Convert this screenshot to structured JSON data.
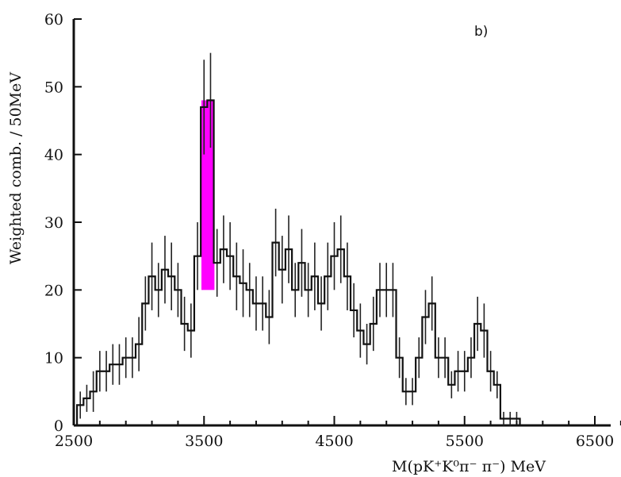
{
  "chart_data": {
    "type": "bar",
    "panel_label": "b)",
    "xlabel": "M(pK⁺K⁰π⁻ π⁻) MeV",
    "ylabel": "Weighted  comb. / 50MeV",
    "xlim": [
      2500,
      6700
    ],
    "ylim": [
      0,
      60
    ],
    "x_ticks": [
      2500,
      3500,
      4500,
      5500,
      6500
    ],
    "x_tick_labels": [
      "2500",
      "3500",
      "4500",
      "5500",
      "6500"
    ],
    "y_ticks": [
      0,
      10,
      20,
      30,
      40,
      50,
      60
    ],
    "y_tick_labels": [
      "0",
      "10",
      "20",
      "30",
      "40",
      "50",
      "60"
    ],
    "bin_width_mev": 50,
    "series": [
      {
        "style": "histogram-with-error-bars",
        "x": [
          2550,
          2600,
          2650,
          2700,
          2750,
          2800,
          2850,
          2900,
          2950,
          3000,
          3050,
          3100,
          3150,
          3200,
          3250,
          3300,
          3350,
          3400,
          3450,
          3500,
          3550,
          3600,
          3650,
          3700,
          3750,
          3800,
          3850,
          3900,
          3950,
          4000,
          4050,
          4100,
          4150,
          4200,
          4250,
          4300,
          4350,
          4400,
          4450,
          4500,
          4550,
          4600,
          4650,
          4700,
          4750,
          4800,
          4850,
          4900,
          4950,
          5000,
          5050,
          5100,
          5150,
          5200,
          5250,
          5300,
          5350,
          5400,
          5450,
          5500,
          5550,
          5600,
          5650,
          5700,
          5750,
          5800,
          5850,
          5900,
          5950,
          6000
        ],
        "values": [
          3,
          4,
          5,
          8,
          8,
          9,
          9,
          10,
          10,
          12,
          18,
          22,
          20,
          23,
          22,
          20,
          15,
          14,
          25,
          47,
          48,
          24,
          26,
          25,
          22,
          21,
          20,
          18,
          18,
          16,
          27,
          23,
          26,
          20,
          24,
          20,
          22,
          18,
          22,
          25,
          26,
          22,
          17,
          14,
          12,
          15,
          20,
          20,
          20,
          10,
          5,
          5,
          10,
          16,
          18,
          10,
          10,
          6,
          8,
          8,
          10,
          15,
          14,
          8,
          6,
          1,
          1,
          1,
          0,
          0
        ],
        "errors": [
          2,
          2,
          3,
          3,
          3,
          3,
          3,
          3,
          3,
          4,
          4,
          5,
          4,
          5,
          5,
          4,
          4,
          4,
          5,
          7,
          7,
          5,
          5,
          5,
          5,
          5,
          4,
          4,
          4,
          4,
          5,
          5,
          5,
          4,
          5,
          4,
          5,
          4,
          5,
          5,
          5,
          5,
          4,
          4,
          3,
          4,
          4,
          4,
          4,
          3,
          2,
          2,
          3,
          4,
          4,
          3,
          3,
          2,
          3,
          3,
          3,
          4,
          4,
          3,
          2,
          1,
          1,
          1,
          0,
          0
        ]
      }
    ],
    "highlight": {
      "color": "#ff00ff",
      "x_range": [
        3480,
        3580
      ],
      "y_range": [
        20,
        48
      ]
    }
  }
}
